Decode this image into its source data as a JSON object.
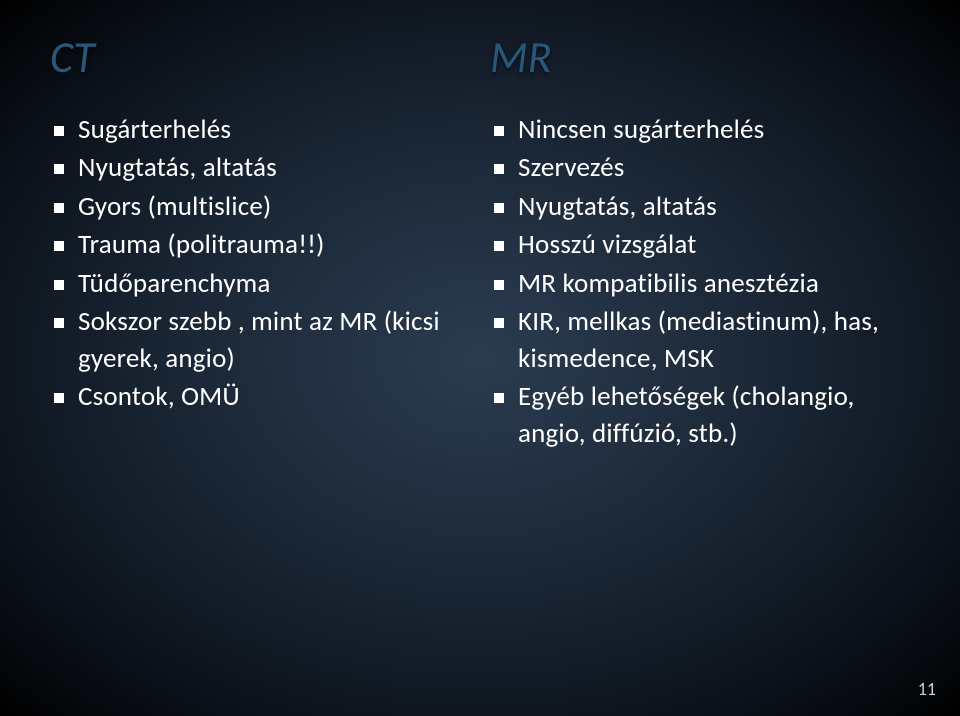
{
  "type": "two-column-bullet-slide",
  "background": {
    "gradient_center": "#2b3c50",
    "gradient_mid": "#1a2635",
    "gradient_outer": "#0a1018",
    "gradient_edge": "#000000"
  },
  "title_color": "#29577a",
  "text_color": "#ffffff",
  "bullet_marker": "square",
  "title_fontsize": 44,
  "body_fontsize": 27,
  "columns": [
    {
      "title": "CT",
      "items": [
        "Sugárterhelés",
        "Nyugtatás, altatás",
        "Gyors (multislice)",
        "Trauma (politrauma!!)",
        "Tüdőparenchyma",
        "Sokszor szebb , mint az MR (kicsi gyerek, angio)",
        "Csontok, OMÜ"
      ]
    },
    {
      "title": "MR",
      "items": [
        "Nincsen sugárterhelés",
        "Szervezés",
        "Nyugtatás, altatás",
        "Hosszú vizsgálat",
        "MR kompatibilis anesztézia",
        "KIR, mellkas (mediastinum), has, kismedence, MSK",
        "Egyéb lehetőségek (cholangio, angio, diffúzió, stb.)"
      ]
    }
  ],
  "page_number": "11"
}
